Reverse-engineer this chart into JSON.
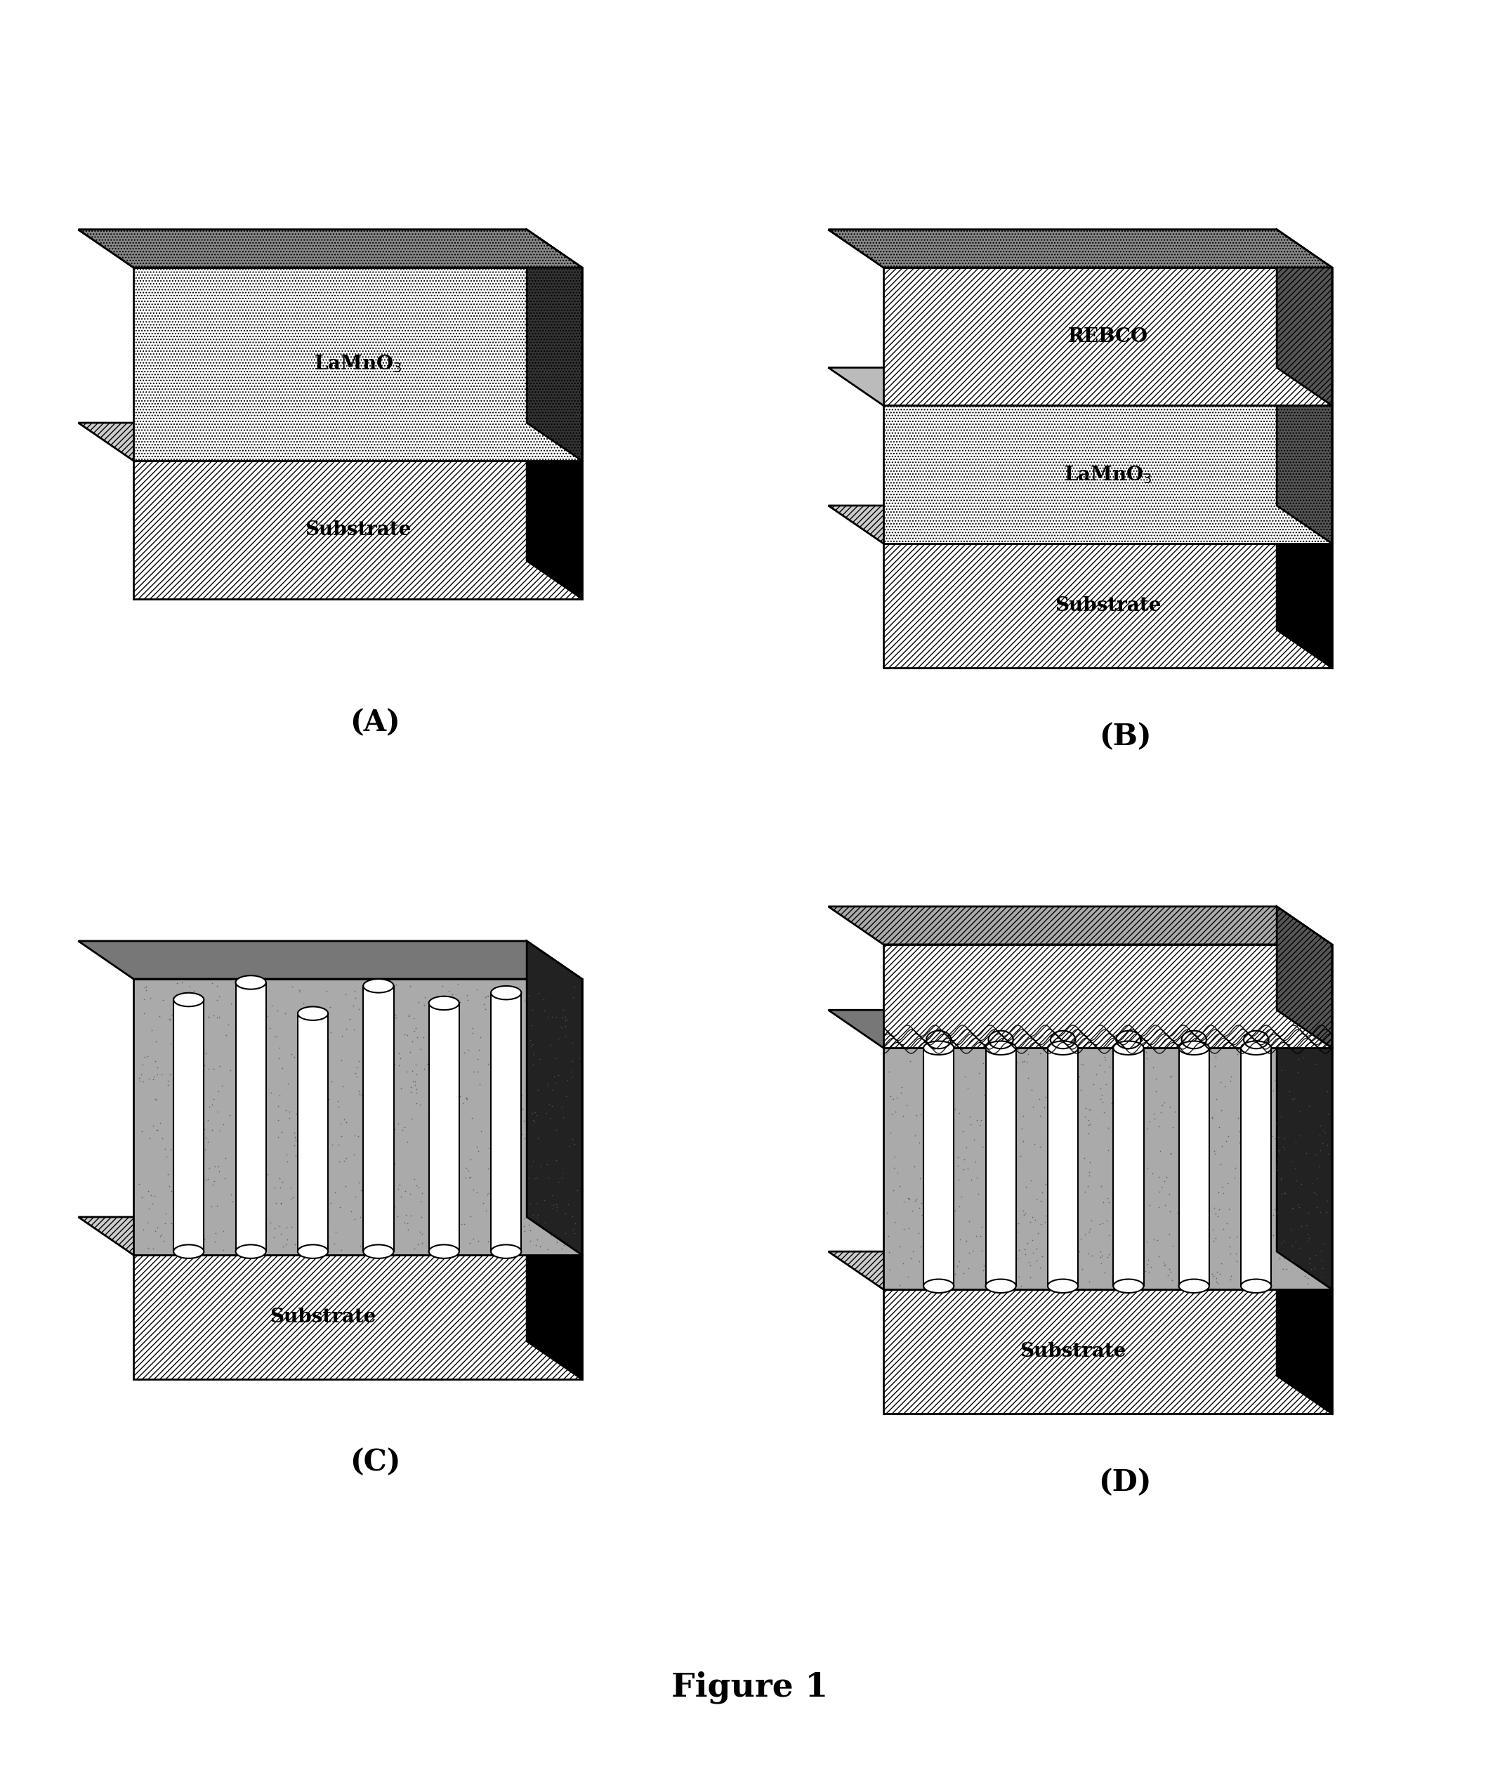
{
  "figure_title": "Figure 1",
  "panels": [
    "A",
    "B",
    "C",
    "D"
  ],
  "background_color": "#ffffff",
  "panel_label_fontsize": 30,
  "title_fontsize": 34,
  "layer_label_fontsize": 20,
  "dot_color": "#000000",
  "substrate_hatch": "////",
  "rebco_hatch": "////",
  "lamno3_hatch": "....",
  "dark_matrix_color": "#888888",
  "dark_top_color": "#555555",
  "dark_side_color": "#000000",
  "substrate_face_color": "#ffffff",
  "substrate_top_color": "#cccccc",
  "substrate_side_color": "#000000",
  "lamno3_face_color": "#ffffff",
  "lamno3_top_color": "#bbbbbb",
  "lamno3_side_color": "#555555",
  "rebco_face_color": "#ffffff",
  "rebco_top_color": "#aaaaaa",
  "rebco_side_color": "#555555"
}
